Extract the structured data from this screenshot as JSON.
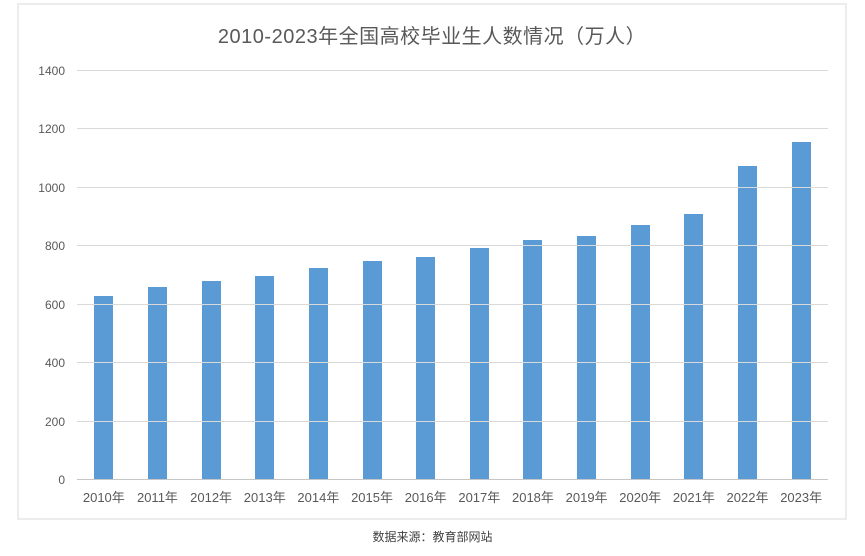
{
  "chart": {
    "title": "2010-2023年全国高校毕业生人数情况（万人）",
    "source_note": "数据来源：教育部网站"
  },
  "chart_data": {
    "type": "bar",
    "title": "2010-2023年全国高校毕业生人数情况（万人）",
    "categories": [
      "2010年",
      "2011年",
      "2012年",
      "2013年",
      "2014年",
      "2015年",
      "2016年",
      "2017年",
      "2018年",
      "2019年",
      "2020年",
      "2021年",
      "2022年",
      "2023年"
    ],
    "values": [
      631,
      660,
      680,
      699,
      727,
      749,
      765,
      795,
      820,
      834,
      874,
      909,
      1076,
      1158
    ],
    "xlabel": "",
    "ylabel": "",
    "ylim": [
      0,
      1400
    ],
    "yticks": [
      0,
      200,
      400,
      600,
      800,
      1000,
      1200,
      1400
    ],
    "grid": true,
    "legend": "none",
    "source_note": "数据来源：教育部网站",
    "colors": {
      "bar": "#5b9bd5",
      "gridline": "#d9d9d9",
      "axis_text": "#595959",
      "title_text": "#595959",
      "frame_border": "#ececec",
      "source_text": "#404040"
    }
  }
}
